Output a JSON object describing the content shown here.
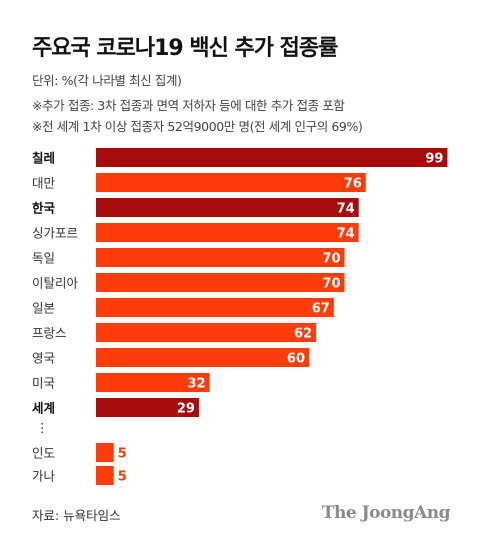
{
  "title": "주요국 코로나19 백신 추가 접종률",
  "unit_note": "단위: %(각 나라별 최신 집계)",
  "notes": [
    "※추가 접종: 3차 접종과 면역 저하자 등에 대한 추가 접종 포함",
    "※전 세계 1차 이상 접종자 52억9000만 명(전 세계 인구의 69%)"
  ],
  "source": "자료: 뉴욕타임스",
  "logo": "The JoongAng",
  "gap_marker": "⋮",
  "colors": {
    "highlight": "#a60c0c",
    "regular": "#ff3d0b"
  },
  "chart_data": {
    "type": "bar",
    "orientation": "horizontal",
    "xlim": [
      0,
      100
    ],
    "categories": [
      "칠레",
      "대만",
      "한국",
      "싱가포르",
      "독일",
      "이탈리아",
      "일본",
      "프랑스",
      "영국",
      "미국",
      "세계",
      "인도",
      "가나"
    ],
    "values": [
      99,
      76,
      74,
      74,
      70,
      70,
      67,
      62,
      60,
      32,
      29,
      5,
      5
    ],
    "highlighted": [
      "칠레",
      "한국",
      "세계"
    ]
  }
}
